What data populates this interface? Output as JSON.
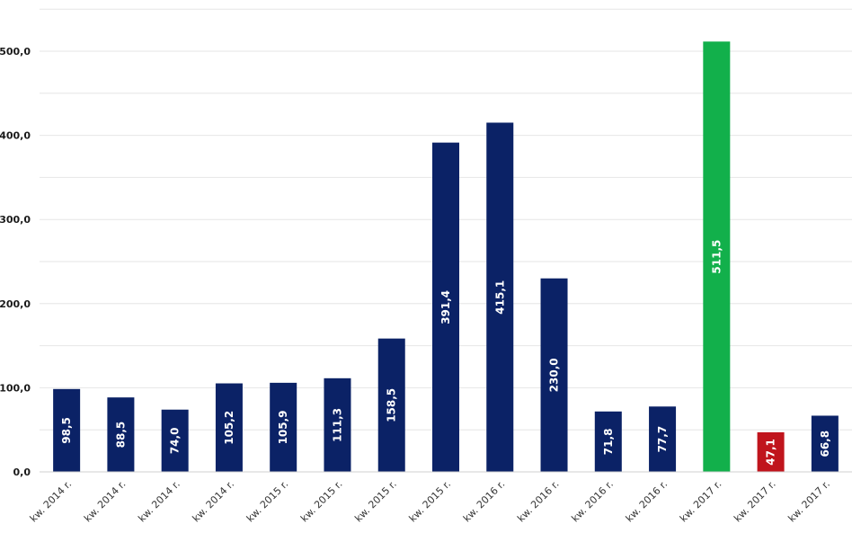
{
  "chart_data": {
    "type": "bar",
    "title": "",
    "xlabel": "",
    "ylabel": "",
    "ylim": [
      0,
      550
    ],
    "yticks": [
      "0,0",
      "100,0",
      "200,0",
      "300,0",
      "400,0",
      "500,0"
    ],
    "grid": true,
    "categories": [
      "kw. 2014 r.",
      "kw. 2014 r.",
      "kw. 2014 r.",
      "kw. 2014 r.",
      "kw. 2015 r.",
      "kw. 2015 r.",
      "kw. 2015 r.",
      "kw. 2015 r.",
      "kw. 2016 r.",
      "kw. 2016 r.",
      "kw. 2016 r.",
      "kw. 2016 r.",
      "kw. 2017 r.",
      "kw. 2017 r.",
      "kw. 2017 r."
    ],
    "values": [
      98.5,
      88.5,
      74.0,
      105.2,
      105.9,
      111.3,
      158.5,
      391.4,
      415.1,
      230.0,
      71.8,
      77.7,
      511.5,
      47.1,
      66.8
    ],
    "value_labels": [
      "98,5",
      "88,5",
      "74,0",
      "105,2",
      "105,9",
      "111,3",
      "158,5",
      "391,4",
      "415,1",
      "230,0",
      "71,8",
      "77,7",
      "511,5",
      "47,1",
      "66,8"
    ],
    "bar_colors": [
      "#0b2266",
      "#0b2266",
      "#0b2266",
      "#0b2266",
      "#0b2266",
      "#0b2266",
      "#0b2266",
      "#0b2266",
      "#0b2266",
      "#0b2266",
      "#0b2266",
      "#0b2266",
      "#12b04b",
      "#c0141c",
      "#0b2266"
    ],
    "colors": {
      "default_bar": "#0b2266",
      "highlight_max": "#12b04b",
      "highlight_min": "#c0141c",
      "grid": "#e6e6e6"
    }
  }
}
